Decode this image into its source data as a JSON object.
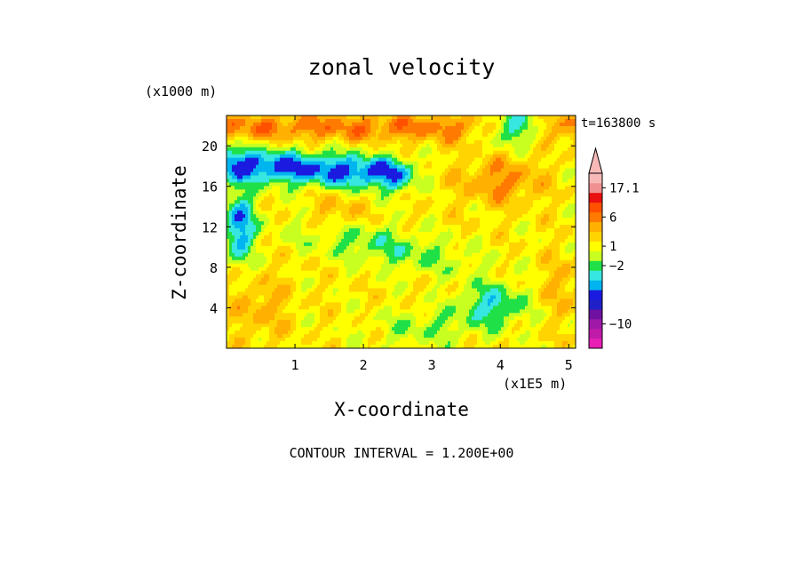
{
  "chart_data": {
    "type": "heatmap",
    "title": "zonal velocity",
    "xlabel": "X-coordinate",
    "ylabel": "Z-coordinate",
    "x_unit": "(x1E5 m)",
    "y_unit": "(x1000 m)",
    "time_label": "t=163800 s",
    "contour_label": "CONTOUR INTERVAL = 1.200E+00",
    "xlim": [
      0,
      5.1
    ],
    "ylim": [
      0,
      23
    ],
    "xticks": [
      1,
      2,
      3,
      4,
      5
    ],
    "yticks": [
      4,
      8,
      12,
      16,
      20
    ],
    "colorbar": {
      "colors": [
        "#e81fb4",
        "#c01aa8",
        "#a018a8",
        "#6e10a0",
        "#2020c8",
        "#1a1ae0",
        "#00b4f0",
        "#36e6e0",
        "#20e048",
        "#c8ff20",
        "#ffff00",
        "#ffd400",
        "#ffb000",
        "#ff7a00",
        "#ff5000",
        "#e81010",
        "#f09090",
        "#f8b8b8"
      ],
      "labels": [
        {
          "text": "17.1",
          "index": 16
        },
        {
          "text": "6",
          "index": 13
        },
        {
          "text": "1",
          "index": 10
        },
        {
          "text": "−2",
          "index": 8
        },
        {
          "text": "−10",
          "index": 2
        }
      ]
    },
    "field": {
      "scale": [
        "#1a1ae0",
        "#00b4f0",
        "#36e6e0",
        "#20e048",
        "#c8ff20",
        "#ffff00",
        "#ffd400",
        "#ffb000",
        "#ff7a00",
        "#ff5000",
        "#e81010",
        "#9010a8"
      ],
      "note_levels": "0=blue,1=cyan,2=aqua,3=green,4=lime,5=yellow,6=gold,7=light-orange,8=orange,9=red-orange,10=red,11=purple"
    }
  }
}
